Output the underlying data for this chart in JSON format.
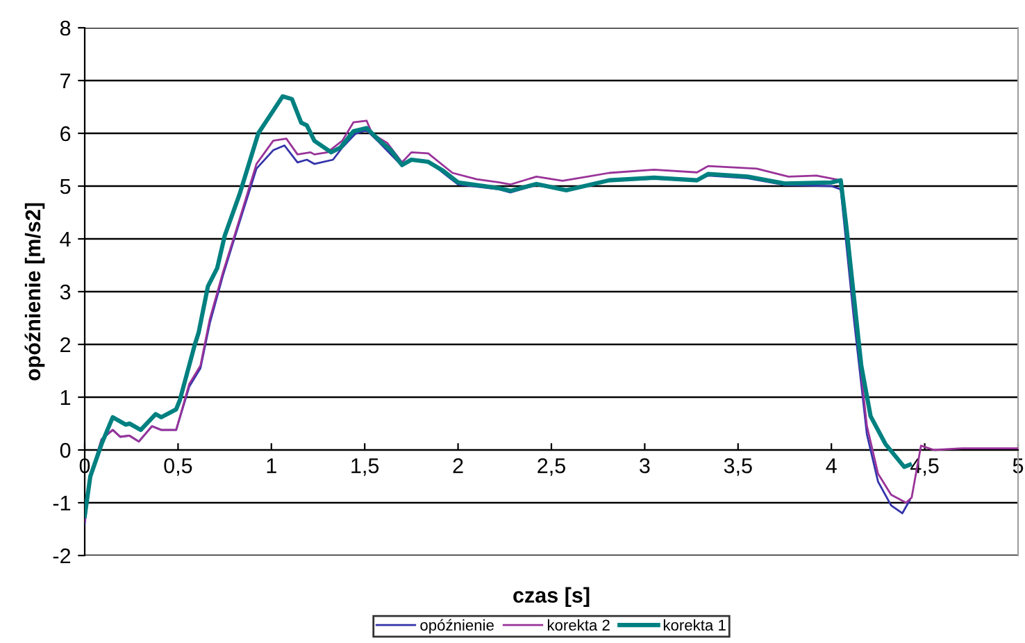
{
  "chart_data": {
    "type": "line",
    "xlabel": "czas [s]",
    "ylabel": "opóźnienie [m/s2]",
    "xlim": [
      0,
      5
    ],
    "ylim": [
      -2,
      8
    ],
    "xticks": [
      {
        "value": 0,
        "label": "0"
      },
      {
        "value": 0.5,
        "label": "0,5"
      },
      {
        "value": 1,
        "label": "1"
      },
      {
        "value": 1.5,
        "label": "1,5"
      },
      {
        "value": 2,
        "label": "2"
      },
      {
        "value": 2.5,
        "label": "2,5"
      },
      {
        "value": 3,
        "label": "3"
      },
      {
        "value": 3.5,
        "label": "3,5"
      },
      {
        "value": 4,
        "label": "4"
      },
      {
        "value": 4.5,
        "label": "4,5"
      },
      {
        "value": 5,
        "label": "5"
      }
    ],
    "yticks": [
      -2,
      -1,
      0,
      1,
      2,
      3,
      4,
      5,
      6,
      7,
      8
    ],
    "grid": "y",
    "legend": "bottom",
    "marker": "none",
    "line_style": "solid",
    "series": [
      {
        "name": "opóźnienie",
        "color": "#3333aa",
        "x": [
          0,
          0.03,
          0.09,
          0.15,
          0.19,
          0.24,
          0.29,
          0.36,
          0.41,
          0.49,
          0.56,
          0.62,
          0.67,
          0.74,
          0.81,
          0.92,
          1.01,
          1.07,
          1.14,
          1.19,
          1.23,
          1.33,
          1.38,
          1.45,
          1.51,
          1.58,
          1.7,
          1.75,
          1.84,
          1.92,
          2.0,
          2.22,
          2.28,
          2.42,
          2.58,
          2.81,
          3.05,
          3.28,
          3.34,
          3.55,
          3.75,
          4.0,
          4.05,
          4.08,
          4.12,
          4.16,
          4.19,
          4.25,
          4.32,
          4.38,
          4.42
        ],
        "values": [
          -1.4,
          -0.5,
          0.2,
          0.38,
          0.25,
          0.27,
          0.16,
          0.45,
          0.38,
          0.38,
          1.2,
          1.55,
          2.4,
          3.3,
          4.1,
          5.33,
          5.68,
          5.77,
          5.45,
          5.5,
          5.42,
          5.5,
          5.73,
          5.99,
          6.06,
          5.82,
          5.38,
          5.5,
          5.48,
          5.25,
          5.03,
          4.94,
          4.88,
          5.02,
          4.92,
          5.1,
          5.14,
          5.1,
          5.2,
          5.15,
          5.02,
          5.0,
          4.94,
          3.9,
          2.5,
          1.25,
          0.3,
          -0.6,
          -1.05,
          -1.2,
          -0.95
        ]
      },
      {
        "name": "korekta 2",
        "color": "#993399",
        "x": [
          0,
          0.03,
          0.09,
          0.15,
          0.19,
          0.24,
          0.29,
          0.36,
          0.41,
          0.49,
          0.56,
          0.62,
          0.67,
          0.74,
          0.81,
          0.92,
          1.01,
          1.08,
          1.14,
          1.21,
          1.23,
          1.3,
          1.38,
          1.44,
          1.51,
          1.54,
          1.62,
          1.7,
          1.75,
          1.84,
          1.97,
          2.1,
          2.22,
          2.28,
          2.42,
          2.56,
          2.81,
          3.05,
          3.28,
          3.34,
          3.6,
          3.77,
          3.92,
          4.05,
          4.08,
          4.12,
          4.16,
          4.19,
          4.25,
          4.32,
          4.4,
          4.43,
          4.48,
          4.55,
          4.7,
          5.0
        ],
        "values": [
          -1.35,
          -0.5,
          0.2,
          0.38,
          0.25,
          0.27,
          0.16,
          0.45,
          0.38,
          0.38,
          1.25,
          1.6,
          2.48,
          3.36,
          4.15,
          5.42,
          5.86,
          5.9,
          5.6,
          5.64,
          5.6,
          5.64,
          5.86,
          6.21,
          6.24,
          5.99,
          5.82,
          5.45,
          5.64,
          5.62,
          5.25,
          5.13,
          5.07,
          5.03,
          5.18,
          5.1,
          5.25,
          5.31,
          5.26,
          5.38,
          5.33,
          5.18,
          5.2,
          5.11,
          4.06,
          2.66,
          1.43,
          0.46,
          -0.45,
          -0.85,
          -1.0,
          -0.9,
          0.08,
          0.0,
          0.03,
          0.03
        ]
      },
      {
        "name": "korekta 1",
        "color": "#008080",
        "x": [
          0,
          0.03,
          0.09,
          0.15,
          0.22,
          0.24,
          0.3,
          0.38,
          0.41,
          0.49,
          0.51,
          0.59,
          0.61,
          0.66,
          0.71,
          0.75,
          0.83,
          0.93,
          1.01,
          1.06,
          1.11,
          1.16,
          1.19,
          1.23,
          1.32,
          1.37,
          1.44,
          1.51,
          1.58,
          1.64,
          1.7,
          1.75,
          1.84,
          1.92,
          2.0,
          2.22,
          2.28,
          2.42,
          2.58,
          2.81,
          3.05,
          3.28,
          3.34,
          3.55,
          3.75,
          4.0,
          4.05,
          4.08,
          4.12,
          4.16,
          4.21,
          4.29,
          4.39,
          4.42
        ],
        "values": [
          -1.25,
          -0.5,
          0.11,
          0.62,
          0.48,
          0.5,
          0.38,
          0.68,
          0.62,
          0.77,
          0.95,
          2.0,
          2.22,
          3.1,
          3.45,
          4.06,
          4.85,
          6.0,
          6.43,
          6.7,
          6.65,
          6.2,
          6.15,
          5.86,
          5.64,
          5.73,
          6.04,
          6.1,
          5.86,
          5.68,
          5.4,
          5.5,
          5.46,
          5.29,
          5.07,
          4.96,
          4.91,
          5.04,
          4.92,
          5.11,
          5.16,
          5.11,
          5.23,
          5.18,
          5.05,
          5.07,
          5.11,
          4.24,
          2.92,
          1.6,
          0.64,
          0.11,
          -0.32,
          -0.28
        ]
      }
    ]
  }
}
